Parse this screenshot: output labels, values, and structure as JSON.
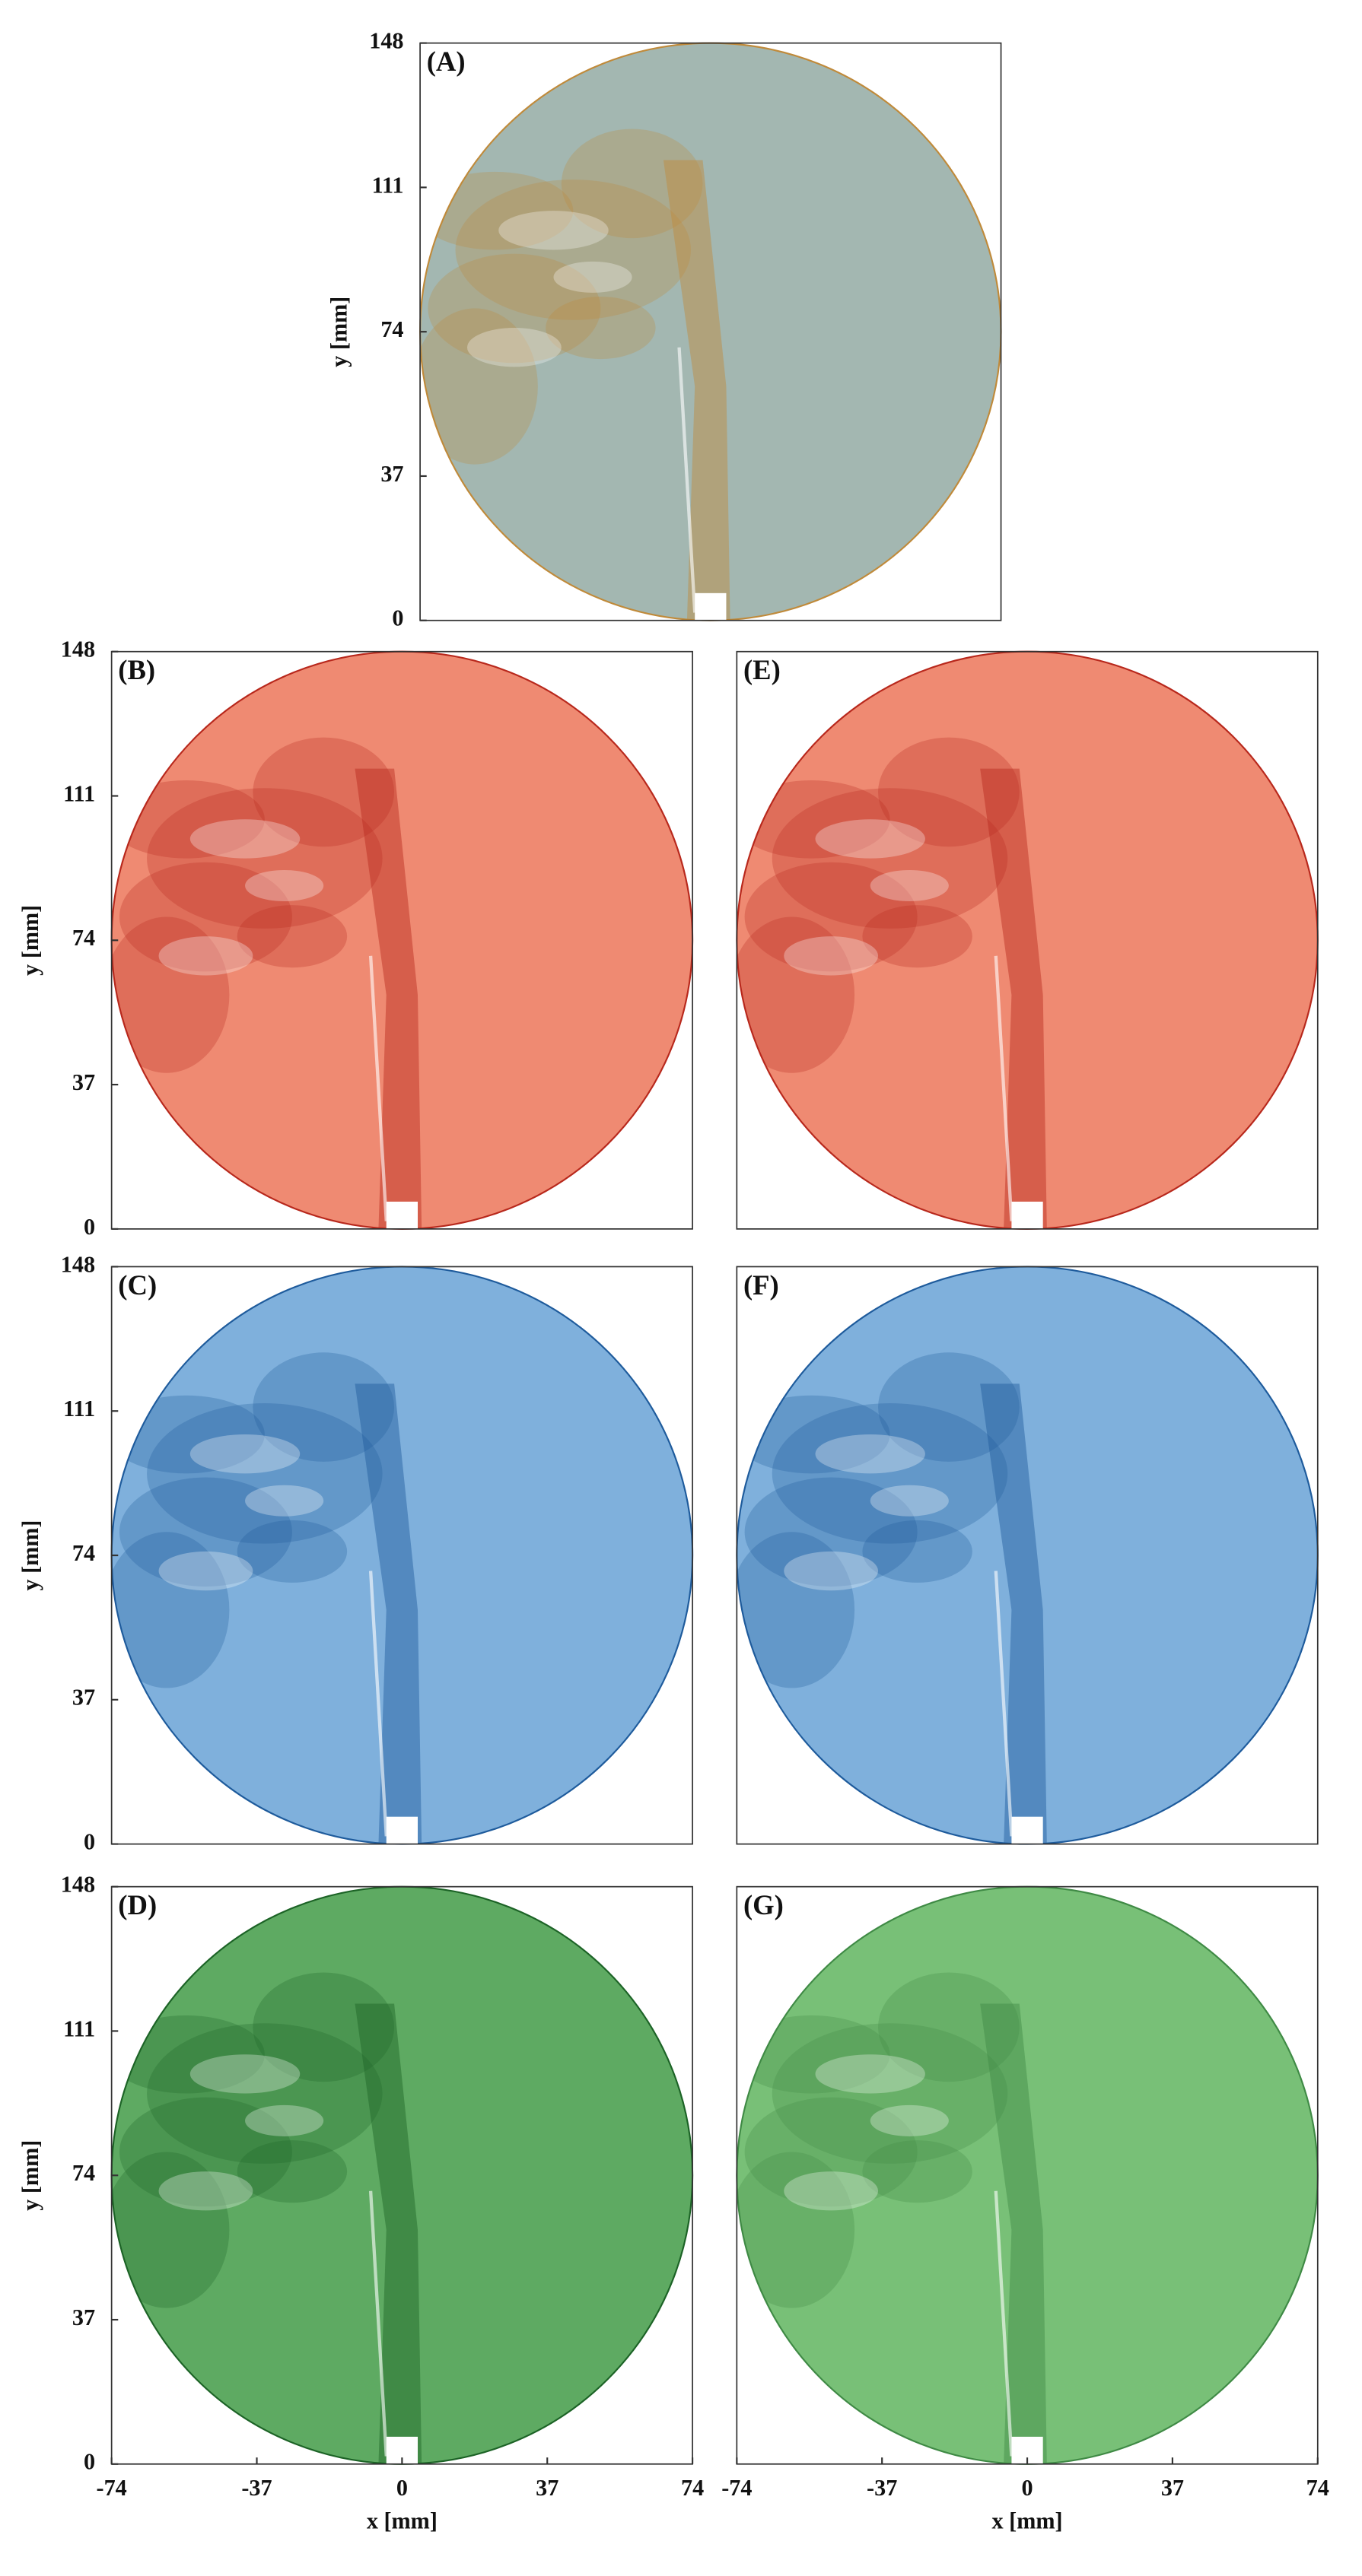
{
  "chart_data": [
    {
      "type": "image",
      "label": "(A)",
      "color": "#a3b7b1",
      "plume": "#c08a3a",
      "xlim": [
        -74,
        74
      ],
      "ylim": [
        0,
        148
      ],
      "yticks": [
        0,
        37,
        74,
        111,
        148
      ],
      "ylabel": "y [mm]"
    },
    {
      "type": "image",
      "label": "(B)",
      "color": "#ef8a72",
      "plume": "#b8281c",
      "xlim": [
        -74,
        74
      ],
      "ylim": [
        0,
        148
      ],
      "yticks": [
        0,
        37,
        74,
        111,
        148
      ],
      "ylabel": "y [mm]"
    },
    {
      "type": "image",
      "label": "(C)",
      "color": "#7fb0dc",
      "plume": "#1e5b9c",
      "xlim": [
        -74,
        74
      ],
      "ylim": [
        0,
        148
      ],
      "yticks": [
        0,
        37,
        74,
        111,
        148
      ],
      "ylabel": "y [mm]"
    },
    {
      "type": "image",
      "label": "(D)",
      "color": "#5eaa62",
      "plume": "#1c6326",
      "xlim": [
        -74,
        74
      ],
      "ylim": [
        0,
        148
      ],
      "yticks": [
        0,
        37,
        74,
        111,
        148
      ],
      "ylabel": "y [mm]",
      "xticks": [
        -74,
        -37,
        0,
        37,
        74
      ],
      "xlabel": "x [mm]"
    },
    {
      "type": "image",
      "label": "(E)",
      "color": "#ef8a72",
      "plume": "#b8281c",
      "xlim": [
        -74,
        74
      ],
      "ylim": [
        0,
        148
      ]
    },
    {
      "type": "image",
      "label": "(F)",
      "color": "#7fb0dc",
      "plume": "#1e5b9c",
      "xlim": [
        -74,
        74
      ],
      "ylim": [
        0,
        148
      ]
    },
    {
      "type": "image",
      "label": "(G)",
      "color": "#78c077",
      "plume": "#3f8a45",
      "xlim": [
        -74,
        74
      ],
      "ylim": [
        0,
        148
      ],
      "xticks": [
        -74,
        -37,
        0,
        37,
        74
      ],
      "xlabel": "x [mm]"
    }
  ]
}
